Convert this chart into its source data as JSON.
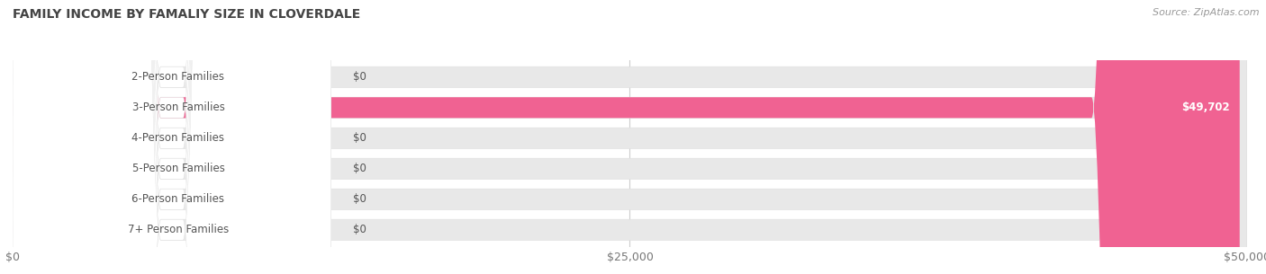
{
  "title": "FAMILY INCOME BY FAMALIY SIZE IN CLOVERDALE",
  "source": "Source: ZipAtlas.com",
  "categories": [
    "2-Person Families",
    "3-Person Families",
    "4-Person Families",
    "5-Person Families",
    "6-Person Families",
    "7+ Person Families"
  ],
  "values": [
    0,
    49702,
    0,
    0,
    0,
    0
  ],
  "max_value": 50000,
  "bar_colors": [
    "#9ba8cc",
    "#f06292",
    "#f5c07a",
    "#f0a090",
    "#a8b8d8",
    "#c0b0d8"
  ],
  "bar_bg_color": "#e8e8e8",
  "dot_colors": [
    "#9ba8cc",
    "#f06292",
    "#f5c07a",
    "#f0a090",
    "#a8b8d8",
    "#c0b0d8"
  ],
  "value_labels": [
    "$0",
    "$49,702",
    "$0",
    "$0",
    "$0",
    "$0"
  ],
  "x_ticks": [
    0,
    25000,
    50000
  ],
  "x_tick_labels": [
    "$0",
    "$25,000",
    "$50,000"
  ],
  "fig_width": 14.06,
  "fig_height": 3.05,
  "background_color": "#ffffff",
  "plot_bg_color": "#f7f7f7",
  "label_text_color": "#555555",
  "value_text_color_inside": "#ffffff",
  "value_text_color_outside": "#555555"
}
